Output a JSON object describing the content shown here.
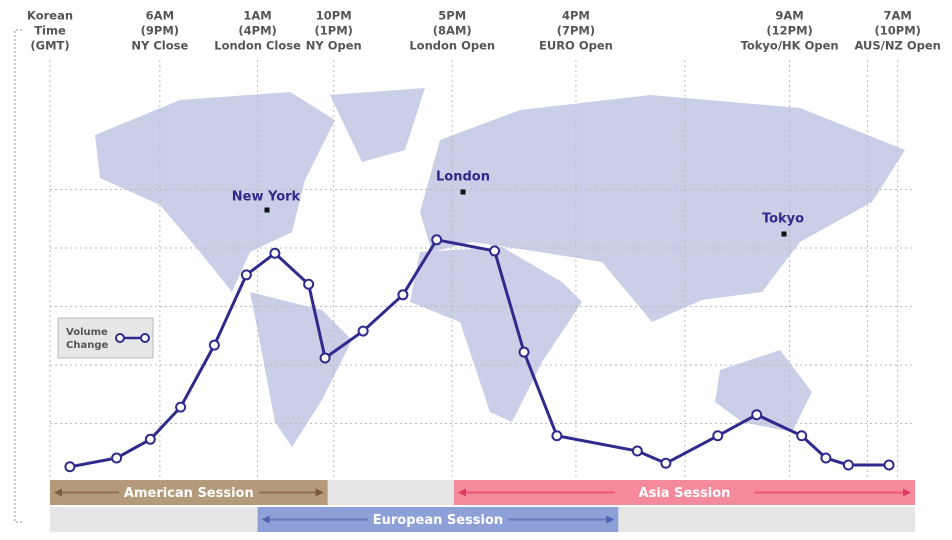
{
  "chart_data": {
    "type": "line",
    "xlim": [
      0,
      100
    ],
    "ylim": [
      0,
      7
    ],
    "grid_lines": [
      1,
      2,
      3,
      4,
      5
    ],
    "time_axis_label": [
      "Korean",
      "Time",
      "(GMT)"
    ],
    "time_columns": [
      {
        "x": 12.7,
        "lines": [
          "6AM",
          "(9PM)",
          "NY Close"
        ]
      },
      {
        "x": 24.0,
        "lines": [
          "1AM",
          "(4PM)",
          "London Close"
        ]
      },
      {
        "x": 32.8,
        "lines": [
          "10PM",
          "(1PM)",
          "NY Open"
        ]
      },
      {
        "x": 46.5,
        "lines": [
          "5PM",
          "(8AM)",
          "London Open"
        ]
      },
      {
        "x": 60.8,
        "lines": [
          "4PM",
          "(7PM)",
          "EURO Open"
        ]
      },
      {
        "x": 85.5,
        "lines": [
          "9AM",
          "(12PM)",
          "Tokyo/HK Open"
        ]
      },
      {
        "x": 98.0,
        "lines": [
          "7AM",
          "(10PM)",
          "AUS/NZ Open"
        ]
      }
    ],
    "extra_verticals": [
      73.4,
      94.5
    ],
    "cities": [
      "New York",
      "London",
      "Tokyo"
    ],
    "series": [
      {
        "name": "Volume Change",
        "color": "#2f2a8c",
        "x": [
          2.3,
          7.7,
          11.6,
          15.1,
          19.0,
          22.7,
          26.0,
          29.9,
          31.8,
          36.2,
          40.8,
          44.7,
          51.4,
          54.8,
          58.6,
          67.9,
          71.2,
          77.2,
          81.7,
          86.9,
          89.7,
          92.3,
          97.0
        ],
        "values": [
          0.26,
          0.41,
          0.73,
          1.28,
          2.34,
          3.54,
          3.91,
          3.38,
          2.12,
          2.58,
          3.2,
          4.14,
          3.95,
          2.22,
          0.79,
          0.53,
          0.32,
          0.79,
          1.15,
          0.79,
          0.41,
          0.29,
          0.29
        ]
      }
    ],
    "legend_label": [
      "Volume",
      "Change"
    ],
    "sessions": [
      {
        "name": "American Session",
        "start": 0,
        "end": 32.1,
        "row": 0,
        "color": "#b39a78",
        "arrow": "#7a5a3a"
      },
      {
        "name": "Asia Session",
        "start": 46.7,
        "end": 100,
        "row": 0,
        "color": "#f58a9c",
        "arrow": "#e23a5a"
      },
      {
        "name": "European Session",
        "start": 24.0,
        "end": 65.7,
        "row": 1,
        "color": "#8ea0d8",
        "arrow": "#5060b0"
      }
    ]
  }
}
